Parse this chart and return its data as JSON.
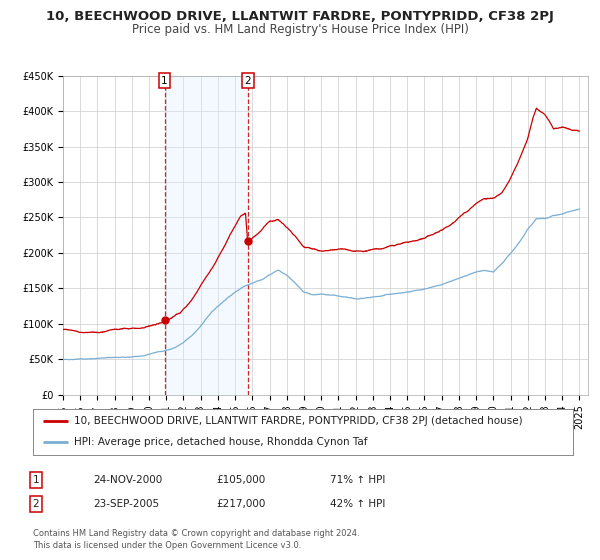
{
  "title": "10, BEECHWOOD DRIVE, LLANTWIT FARDRE, PONTYPRIDD, CF38 2PJ",
  "subtitle": "Price paid vs. HM Land Registry's House Price Index (HPI)",
  "ylim": [
    0,
    450000
  ],
  "yticks": [
    0,
    50000,
    100000,
    150000,
    200000,
    250000,
    300000,
    350000,
    400000,
    450000
  ],
  "ytick_labels": [
    "£0",
    "£50K",
    "£100K",
    "£150K",
    "£200K",
    "£250K",
    "£300K",
    "£350K",
    "£400K",
    "£450K"
  ],
  "xlim_start": 1995.0,
  "xlim_end": 2025.5,
  "background_color": "#ffffff",
  "grid_color": "#cccccc",
  "hpi_line_color": "#7bafd4",
  "price_line_color": "#cc0000",
  "sale1_x": 2000.9,
  "sale1_y": 105000,
  "sale1_label": "1",
  "sale1_date": "24-NOV-2000",
  "sale1_price": "£105,000",
  "sale1_hpi": "71% ↑ HPI",
  "sale2_x": 2005.73,
  "sale2_y": 217000,
  "sale2_label": "2",
  "sale2_date": "23-SEP-2005",
  "sale2_price": "£217,000",
  "sale2_hpi": "42% ↑ HPI",
  "shading_color": "#ddeeff",
  "shading_alpha": 0.35,
  "legend_line1": "10, BEECHWOOD DRIVE, LLANTWIT FARDRE, PONTYPRIDD, CF38 2PJ (detached house)",
  "legend_line2": "HPI: Average price, detached house, Rhondda Cynon Taf",
  "footer1": "Contains HM Land Registry data © Crown copyright and database right 2024.",
  "footer2": "This data is licensed under the Open Government Licence v3.0.",
  "title_fontsize": 9.5,
  "subtitle_fontsize": 8.5,
  "tick_fontsize": 7,
  "legend_fontsize": 7.5
}
